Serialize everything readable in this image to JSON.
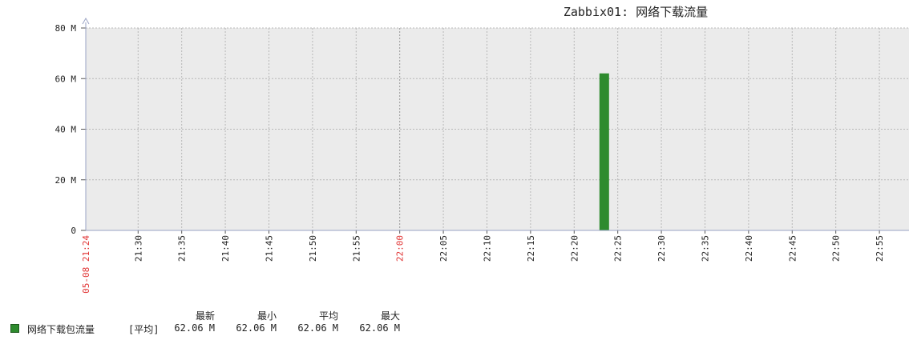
{
  "chart_data": {
    "type": "bar",
    "title": "Zabbix01: 网络下载流量",
    "y_ticks": [
      "80 M",
      "60 M",
      "40 M",
      "20 M",
      "0"
    ],
    "ylim": [
      0,
      80
    ],
    "x_start_label": "05-08 21:24",
    "x_ticks": [
      "21:30",
      "21:35",
      "21:40",
      "21:45",
      "21:50",
      "21:55",
      "22:00",
      "22:05",
      "22:10",
      "22:15",
      "22:20",
      "22:25",
      "22:30",
      "22:35",
      "22:40",
      "22:45",
      "22:50",
      "22:55"
    ],
    "x_highlight": [
      "22:00"
    ],
    "grid": true,
    "series": [
      {
        "name": "网络下载包流量",
        "color": "#2e8b2e",
        "points": [
          {
            "x": "22:24",
            "y": 62.06
          }
        ]
      }
    ]
  },
  "legend": {
    "headers": [
      "最新",
      "最小",
      "平均",
      "最大"
    ],
    "rows": [
      {
        "name": "网络下载包流量",
        "func": "[平均]",
        "values": [
          "62.06 M",
          "62.06 M",
          "62.06 M",
          "62.06 M"
        ],
        "color": "#2e8b2e"
      }
    ]
  },
  "colors": {
    "plot_bg": "#ebebeb",
    "grid": "#b8b8b8",
    "highlight_text": "#e03030",
    "axis": "#9aa3c4"
  }
}
